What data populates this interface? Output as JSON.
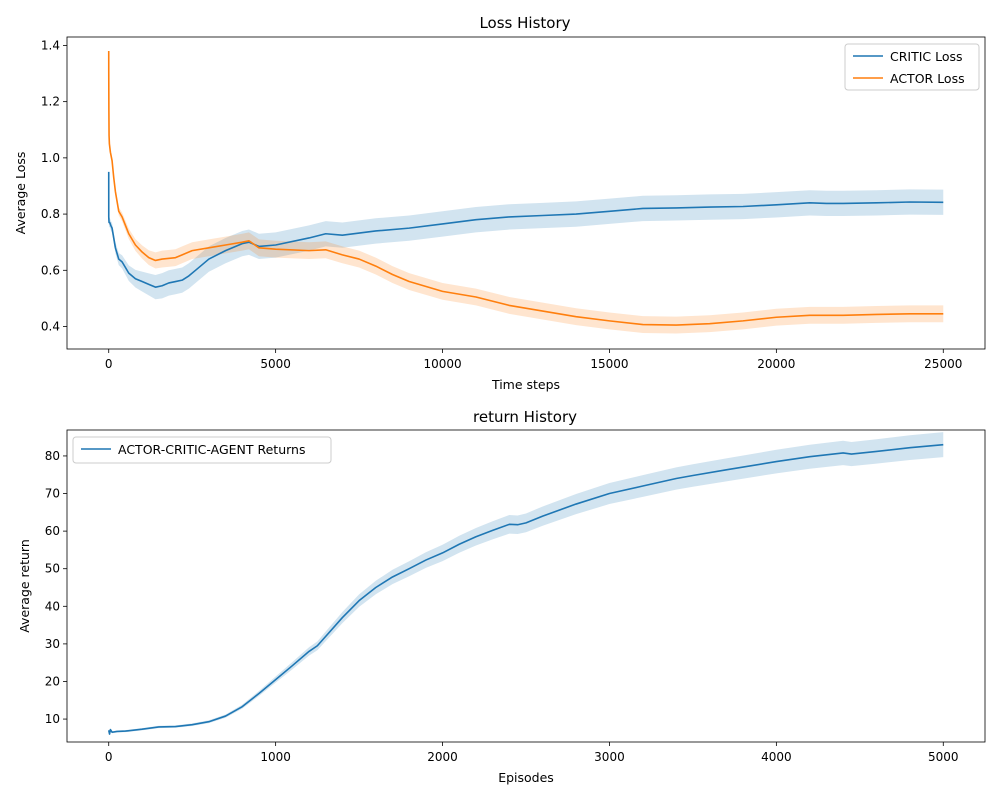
{
  "chart_data": [
    {
      "type": "line",
      "title": "Loss History",
      "xlabel": "Time steps",
      "ylabel": "Average Loss",
      "xlim": [
        -1250,
        26250
      ],
      "ylim": [
        0.32,
        1.43
      ],
      "xticks": [
        0,
        5000,
        10000,
        15000,
        20000,
        25000
      ],
      "yticks": [
        0.4,
        0.6,
        0.8,
        1.0,
        1.2,
        1.4
      ],
      "ytick_labels": [
        "0.4",
        "0.6",
        "0.8",
        "1.0",
        "1.2",
        "1.4"
      ],
      "legend_position": "top-right",
      "grid": false,
      "series": [
        {
          "name": "CRITIC Loss",
          "color": "#1f77b4",
          "band": 0.045,
          "x": [
            0,
            1,
            5,
            10,
            30,
            60,
            100,
            200,
            300,
            400,
            600,
            800,
            1000,
            1200,
            1400,
            1600,
            1800,
            2000,
            2200,
            2400,
            2600,
            2800,
            3000,
            3500,
            4000,
            4200,
            4500,
            5000,
            6000,
            6500,
            7000,
            8000,
            9000,
            10000,
            11000,
            12000,
            13000,
            14000,
            15000,
            16000,
            17000,
            18000,
            19000,
            20000,
            21000,
            21500,
            22000,
            23000,
            24000,
            25000
          ],
          "y": [
            0.95,
            0.79,
            0.78,
            0.77,
            0.77,
            0.76,
            0.75,
            0.68,
            0.64,
            0.63,
            0.59,
            0.57,
            0.56,
            0.55,
            0.54,
            0.545,
            0.555,
            0.56,
            0.565,
            0.58,
            0.6,
            0.62,
            0.64,
            0.67,
            0.695,
            0.7,
            0.685,
            0.69,
            0.715,
            0.73,
            0.725,
            0.74,
            0.75,
            0.765,
            0.78,
            0.79,
            0.795,
            0.8,
            0.81,
            0.82,
            0.822,
            0.825,
            0.827,
            0.833,
            0.84,
            0.838,
            0.838,
            0.84,
            0.843,
            0.842
          ]
        },
        {
          "name": "ACTOR Loss",
          "color": "#ff7f0e",
          "band": 0.03,
          "x": [
            0,
            1,
            5,
            10,
            20,
            50,
            100,
            150,
            200,
            300,
            400,
            500,
            600,
            800,
            1000,
            1200,
            1400,
            1600,
            2000,
            2200,
            2500,
            3000,
            3500,
            4000,
            4200,
            4500,
            5000,
            6000,
            6500,
            7000,
            7500,
            8000,
            8500,
            9000,
            10000,
            11000,
            12000,
            13000,
            14000,
            15000,
            16000,
            17000,
            18000,
            19000,
            20000,
            21000,
            21500,
            22000,
            23000,
            24000,
            25000
          ],
          "y": [
            1.38,
            1.3,
            1.17,
            1.08,
            1.05,
            1.02,
            0.99,
            0.93,
            0.88,
            0.81,
            0.79,
            0.76,
            0.73,
            0.69,
            0.665,
            0.645,
            0.635,
            0.64,
            0.645,
            0.655,
            0.67,
            0.68,
            0.69,
            0.7,
            0.705,
            0.68,
            0.675,
            0.67,
            0.673,
            0.655,
            0.64,
            0.615,
            0.585,
            0.56,
            0.525,
            0.505,
            0.475,
            0.455,
            0.435,
            0.42,
            0.407,
            0.405,
            0.41,
            0.42,
            0.433,
            0.44,
            0.44,
            0.44,
            0.443,
            0.445,
            0.445
          ]
        }
      ]
    },
    {
      "type": "line",
      "title": "return History",
      "xlabel": "Episodes",
      "ylabel": "Average return",
      "xlim": [
        -250,
        5250
      ],
      "ylim": [
        3.9,
        86.9
      ],
      "xticks": [
        0,
        1000,
        2000,
        3000,
        4000,
        5000
      ],
      "yticks": [
        10,
        20,
        30,
        40,
        50,
        60,
        70,
        80
      ],
      "ytick_labels": [
        "10",
        "20",
        "30",
        "40",
        "50",
        "60",
        "70",
        "80"
      ],
      "legend_position": "top-left",
      "grid": false,
      "series": [
        {
          "name": "ACTOR-CRITIC-AGENT Returns",
          "color": "#1f77b4",
          "band_ratio": 0.04,
          "x": [
            0,
            5,
            10,
            20,
            50,
            100,
            200,
            300,
            400,
            500,
            600,
            700,
            800,
            900,
            1000,
            1100,
            1200,
            1250,
            1300,
            1400,
            1500,
            1600,
            1700,
            1800,
            1900,
            2000,
            2100,
            2200,
            2300,
            2400,
            2450,
            2500,
            2600,
            2800,
            3000,
            3200,
            3300,
            3400,
            3500,
            3700,
            4000,
            4200,
            4400,
            4450,
            4600,
            4800,
            5000
          ],
          "y": [
            7.0,
            6.0,
            7.2,
            6.5,
            6.7,
            6.8,
            7.3,
            7.9,
            8.0,
            8.5,
            9.3,
            10.8,
            13.3,
            16.8,
            20.5,
            24.2,
            28.0,
            29.5,
            32.0,
            37.0,
            41.5,
            45.0,
            47.8,
            50.0,
            52.3,
            54.2,
            56.5,
            58.5,
            60.2,
            61.8,
            61.7,
            62.2,
            64.0,
            67.2,
            70.0,
            72.0,
            73.0,
            74.0,
            74.8,
            76.3,
            78.5,
            79.8,
            80.8,
            80.5,
            81.2,
            82.2,
            83.0
          ]
        }
      ]
    }
  ]
}
